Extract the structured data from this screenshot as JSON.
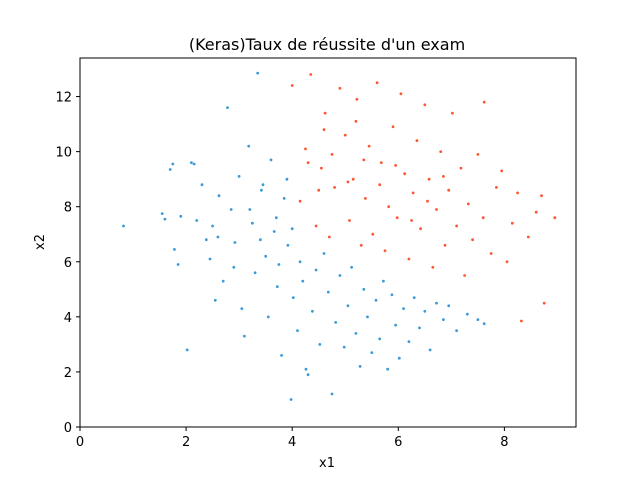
{
  "chart_data": {
    "type": "scatter",
    "title": "(Keras)Taux de réussite d'un exam",
    "xlabel": "x1",
    "ylabel": "x2",
    "xlim": [
      0,
      9.35
    ],
    "ylim": [
      0,
      13.4
    ],
    "xticks": [
      "0",
      "2",
      "4",
      "6",
      "8"
    ],
    "yticks": [
      "0",
      "2",
      "4",
      "6",
      "8",
      "10",
      "12"
    ],
    "grid": false,
    "legend": "none",
    "series": [
      {
        "color": "#3a9ad9",
        "points": [
          [
            0.82,
            7.3
          ],
          [
            1.55,
            7.75
          ],
          [
            1.6,
            7.55
          ],
          [
            1.7,
            9.35
          ],
          [
            1.75,
            9.55
          ],
          [
            1.78,
            6.45
          ],
          [
            1.85,
            5.9
          ],
          [
            1.9,
            7.65
          ],
          [
            2.02,
            2.8
          ],
          [
            2.1,
            9.6
          ],
          [
            2.15,
            9.55
          ],
          [
            2.3,
            8.8
          ],
          [
            2.38,
            6.8
          ],
          [
            2.45,
            6.1
          ],
          [
            2.5,
            7.3
          ],
          [
            2.55,
            4.6
          ],
          [
            2.62,
            8.4
          ],
          [
            2.7,
            5.3
          ],
          [
            2.78,
            11.6
          ],
          [
            2.85,
            7.9
          ],
          [
            2.92,
            6.7
          ],
          [
            3.0,
            9.1
          ],
          [
            3.05,
            4.3
          ],
          [
            3.1,
            3.3
          ],
          [
            3.18,
            10.2
          ],
          [
            3.25,
            7.4
          ],
          [
            3.3,
            5.6
          ],
          [
            3.35,
            12.85
          ],
          [
            3.42,
            8.6
          ],
          [
            3.5,
            6.2
          ],
          [
            3.55,
            4.0
          ],
          [
            3.6,
            9.7
          ],
          [
            3.66,
            7.1
          ],
          [
            3.72,
            5.1
          ],
          [
            3.8,
            2.6
          ],
          [
            3.85,
            8.3
          ],
          [
            3.92,
            6.6
          ],
          [
            3.98,
            1.0
          ],
          [
            4.02,
            4.7
          ],
          [
            4.1,
            3.5
          ],
          [
            4.15,
            6.0
          ],
          [
            4.2,
            5.3
          ],
          [
            4.26,
            2.1
          ],
          [
            4.3,
            1.9
          ],
          [
            4.38,
            4.2
          ],
          [
            4.45,
            5.7
          ],
          [
            4.52,
            3.0
          ],
          [
            4.6,
            6.3
          ],
          [
            4.68,
            4.9
          ],
          [
            4.75,
            1.2
          ],
          [
            4.82,
            3.8
          ],
          [
            4.9,
            5.5
          ],
          [
            4.98,
            2.9
          ],
          [
            5.05,
            4.4
          ],
          [
            5.12,
            5.8
          ],
          [
            5.2,
            3.4
          ],
          [
            5.28,
            2.2
          ],
          [
            5.35,
            5.0
          ],
          [
            5.42,
            4.0
          ],
          [
            5.5,
            2.7
          ],
          [
            5.58,
            4.6
          ],
          [
            5.65,
            3.2
          ],
          [
            5.72,
            5.3
          ],
          [
            5.8,
            2.1
          ],
          [
            5.88,
            4.8
          ],
          [
            5.95,
            3.7
          ],
          [
            6.02,
            2.5
          ],
          [
            6.1,
            4.3
          ],
          [
            6.2,
            3.1
          ],
          [
            6.3,
            4.7
          ],
          [
            6.4,
            3.6
          ],
          [
            6.5,
            4.2
          ],
          [
            6.6,
            2.8
          ],
          [
            6.72,
            4.5
          ],
          [
            6.85,
            3.9
          ],
          [
            6.95,
            4.4
          ],
          [
            7.1,
            3.5
          ],
          [
            7.3,
            4.1
          ],
          [
            7.5,
            3.9
          ],
          [
            7.62,
            3.75
          ],
          [
            3.2,
            7.9
          ],
          [
            3.45,
            8.8
          ],
          [
            3.7,
            7.6
          ],
          [
            3.9,
            9.0
          ],
          [
            2.6,
            6.9
          ],
          [
            2.9,
            5.8
          ],
          [
            3.4,
            6.8
          ],
          [
            3.75,
            5.9
          ],
          [
            4.0,
            7.2
          ],
          [
            2.2,
            7.5
          ]
        ]
      },
      {
        "color": "#ff5533",
        "points": [
          [
            4.0,
            12.4
          ],
          [
            4.15,
            8.2
          ],
          [
            4.25,
            10.1
          ],
          [
            4.35,
            12.8
          ],
          [
            4.45,
            7.3
          ],
          [
            4.55,
            9.4
          ],
          [
            4.62,
            11.4
          ],
          [
            4.7,
            6.9
          ],
          [
            4.8,
            8.7
          ],
          [
            4.9,
            12.3
          ],
          [
            5.0,
            10.6
          ],
          [
            5.08,
            7.5
          ],
          [
            5.15,
            9.0
          ],
          [
            5.22,
            11.9
          ],
          [
            5.3,
            6.6
          ],
          [
            5.38,
            8.3
          ],
          [
            5.45,
            10.2
          ],
          [
            5.52,
            7.0
          ],
          [
            5.6,
            12.5
          ],
          [
            5.68,
            9.6
          ],
          [
            5.75,
            6.4
          ],
          [
            5.82,
            8.0
          ],
          [
            5.9,
            10.9
          ],
          [
            5.98,
            7.6
          ],
          [
            6.05,
            12.1
          ],
          [
            6.12,
            9.2
          ],
          [
            6.2,
            6.1
          ],
          [
            6.28,
            8.5
          ],
          [
            6.35,
            10.4
          ],
          [
            6.42,
            7.2
          ],
          [
            6.5,
            11.7
          ],
          [
            6.58,
            9.0
          ],
          [
            6.65,
            5.8
          ],
          [
            6.72,
            7.9
          ],
          [
            6.8,
            10.0
          ],
          [
            6.88,
            6.6
          ],
          [
            6.95,
            8.6
          ],
          [
            7.02,
            11.4
          ],
          [
            7.1,
            7.3
          ],
          [
            7.18,
            9.4
          ],
          [
            7.25,
            5.5
          ],
          [
            7.32,
            8.1
          ],
          [
            7.4,
            6.8
          ],
          [
            7.5,
            9.9
          ],
          [
            7.6,
            7.6
          ],
          [
            7.62,
            11.8
          ],
          [
            7.75,
            6.3
          ],
          [
            7.85,
            8.7
          ],
          [
            7.95,
            9.3
          ],
          [
            8.05,
            6.0
          ],
          [
            8.15,
            7.4
          ],
          [
            8.25,
            8.5
          ],
          [
            8.32,
            3.85
          ],
          [
            8.45,
            6.9
          ],
          [
            8.6,
            7.8
          ],
          [
            8.7,
            8.4
          ],
          [
            8.75,
            4.5
          ],
          [
            8.95,
            7.6
          ],
          [
            4.3,
            9.6
          ],
          [
            4.5,
            8.6
          ],
          [
            4.75,
            9.9
          ],
          [
            5.05,
            8.9
          ],
          [
            5.35,
            9.7
          ],
          [
            5.65,
            8.8
          ],
          [
            5.95,
            9.5
          ],
          [
            6.25,
            7.5
          ],
          [
            6.55,
            8.2
          ],
          [
            6.85,
            9.1
          ],
          [
            4.6,
            10.8
          ],
          [
            5.2,
            11.1
          ]
        ]
      }
    ]
  }
}
